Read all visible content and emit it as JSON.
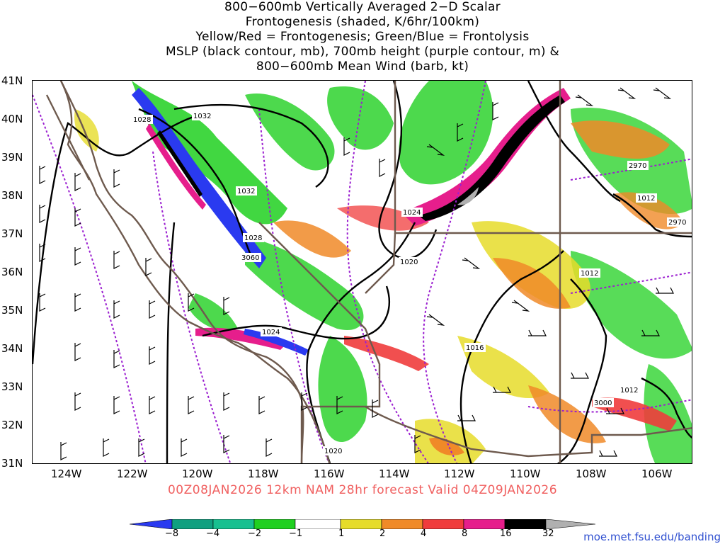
{
  "title_lines": [
    "800−600mb Vertically Averaged 2−D Scalar",
    "Frontogenesis (shaded, K/6hr/100km)",
    "Yellow/Red = Frontogenesis;  Green/Blue = Frontolysis",
    "MSLP (black contour, mb), 700mb height (purple contour, m) &",
    "800−600mb Mean Wind (barb, kt)"
  ],
  "lat_labels": [
    "41N",
    "40N",
    "39N",
    "38N",
    "37N",
    "36N",
    "35N",
    "34N",
    "33N",
    "32N",
    "31N"
  ],
  "lon_labels": [
    "124W",
    "122W",
    "120W",
    "118W",
    "116W",
    "114W",
    "112W",
    "110W",
    "108W",
    "106W"
  ],
  "pressure_labels": [
    "1028",
    "1032",
    "1032",
    "1028",
    "3060",
    "1024",
    "1020",
    "1024",
    "1016",
    "1012",
    "1012",
    "1012",
    "2970",
    "2970",
    "3000",
    "1020"
  ],
  "valid_line": "00Z08JAN2026 12km NAM 28hr forecast Valid 04Z09JAN2026",
  "colorbar": {
    "labels": [
      "−8",
      "−4",
      "−2",
      "−1",
      "1",
      "2",
      "4",
      "8",
      "16",
      "32"
    ],
    "colors": [
      "#2a3af0",
      "#10a080",
      "#18c090",
      "#20d020",
      "#ffffff",
      "#e6dc2a",
      "#f08a28",
      "#f03c3c",
      "#e61e8c",
      "#000000",
      "#b0b0b0"
    ]
  },
  "site_url": "moe.met.fsu.edu/banding",
  "colors": {
    "msl_contour": "#000000",
    "height_contour": "#9b1fd0",
    "border": "#6e5a4e",
    "frontolysis_strong": "#2a3af0",
    "frontolysis": "#20d020",
    "frontogenesis": "#e6dc2a",
    "frontogenesis_strong": "#e61e8c"
  }
}
